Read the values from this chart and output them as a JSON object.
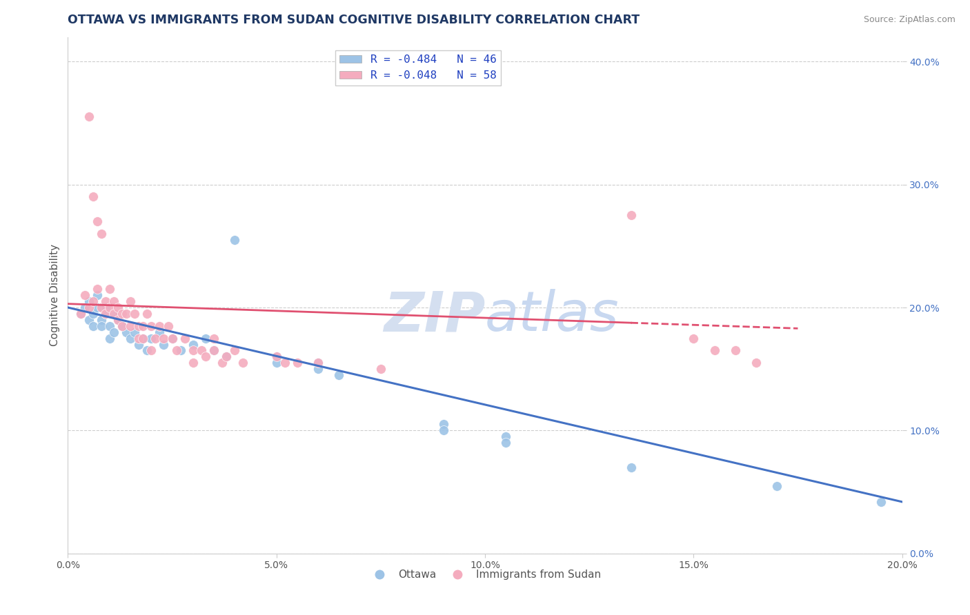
{
  "title": "OTTAWA VS IMMIGRANTS FROM SUDAN COGNITIVE DISABILITY CORRELATION CHART",
  "source": "Source: ZipAtlas.com",
  "ylabel": "Cognitive Disability",
  "watermark": "ZIPatlas",
  "legend_entry_1": "R = -0.484   N = 46",
  "legend_entry_2": "R = -0.048   N = 58",
  "legend_name_1": "Ottawa",
  "legend_name_2": "Immigrants from Sudan",
  "xlim": [
    0.0,
    0.2
  ],
  "ylim": [
    0.0,
    0.42
  ],
  "xticks": [
    0.0,
    0.05,
    0.1,
    0.15,
    0.2
  ],
  "yticks_right": [
    0.0,
    0.1,
    0.2,
    0.3,
    0.4
  ],
  "ottawa_scatter": [
    [
      0.003,
      0.195
    ],
    [
      0.004,
      0.2
    ],
    [
      0.005,
      0.19
    ],
    [
      0.005,
      0.205
    ],
    [
      0.006,
      0.185
    ],
    [
      0.006,
      0.195
    ],
    [
      0.007,
      0.2
    ],
    [
      0.007,
      0.21
    ],
    [
      0.008,
      0.19
    ],
    [
      0.008,
      0.185
    ],
    [
      0.009,
      0.2
    ],
    [
      0.009,
      0.195
    ],
    [
      0.01,
      0.185
    ],
    [
      0.01,
      0.175
    ],
    [
      0.011,
      0.195
    ],
    [
      0.011,
      0.18
    ],
    [
      0.012,
      0.19
    ],
    [
      0.013,
      0.185
    ],
    [
      0.014,
      0.18
    ],
    [
      0.015,
      0.175
    ],
    [
      0.016,
      0.18
    ],
    [
      0.017,
      0.17
    ],
    [
      0.018,
      0.175
    ],
    [
      0.019,
      0.165
    ],
    [
      0.02,
      0.175
    ],
    [
      0.022,
      0.18
    ],
    [
      0.023,
      0.17
    ],
    [
      0.025,
      0.175
    ],
    [
      0.027,
      0.165
    ],
    [
      0.03,
      0.17
    ],
    [
      0.033,
      0.175
    ],
    [
      0.035,
      0.165
    ],
    [
      0.038,
      0.16
    ],
    [
      0.04,
      0.255
    ],
    [
      0.05,
      0.16
    ],
    [
      0.05,
      0.155
    ],
    [
      0.06,
      0.155
    ],
    [
      0.06,
      0.15
    ],
    [
      0.065,
      0.145
    ],
    [
      0.09,
      0.105
    ],
    [
      0.09,
      0.1
    ],
    [
      0.105,
      0.095
    ],
    [
      0.105,
      0.09
    ],
    [
      0.135,
      0.07
    ],
    [
      0.17,
      0.055
    ],
    [
      0.195,
      0.042
    ]
  ],
  "sudan_scatter": [
    [
      0.003,
      0.195
    ],
    [
      0.004,
      0.21
    ],
    [
      0.005,
      0.2
    ],
    [
      0.005,
      0.355
    ],
    [
      0.006,
      0.205
    ],
    [
      0.006,
      0.29
    ],
    [
      0.007,
      0.215
    ],
    [
      0.007,
      0.27
    ],
    [
      0.008,
      0.2
    ],
    [
      0.008,
      0.26
    ],
    [
      0.009,
      0.195
    ],
    [
      0.009,
      0.205
    ],
    [
      0.01,
      0.2
    ],
    [
      0.01,
      0.215
    ],
    [
      0.011,
      0.195
    ],
    [
      0.011,
      0.205
    ],
    [
      0.012,
      0.2
    ],
    [
      0.012,
      0.19
    ],
    [
      0.013,
      0.195
    ],
    [
      0.013,
      0.185
    ],
    [
      0.014,
      0.195
    ],
    [
      0.015,
      0.205
    ],
    [
      0.015,
      0.185
    ],
    [
      0.016,
      0.195
    ],
    [
      0.017,
      0.185
    ],
    [
      0.017,
      0.175
    ],
    [
      0.018,
      0.185
    ],
    [
      0.018,
      0.175
    ],
    [
      0.019,
      0.195
    ],
    [
      0.02,
      0.185
    ],
    [
      0.02,
      0.165
    ],
    [
      0.021,
      0.175
    ],
    [
      0.022,
      0.185
    ],
    [
      0.023,
      0.175
    ],
    [
      0.024,
      0.185
    ],
    [
      0.025,
      0.175
    ],
    [
      0.026,
      0.165
    ],
    [
      0.028,
      0.175
    ],
    [
      0.03,
      0.165
    ],
    [
      0.03,
      0.155
    ],
    [
      0.032,
      0.165
    ],
    [
      0.033,
      0.16
    ],
    [
      0.035,
      0.175
    ],
    [
      0.035,
      0.165
    ],
    [
      0.037,
      0.155
    ],
    [
      0.038,
      0.16
    ],
    [
      0.04,
      0.165
    ],
    [
      0.042,
      0.155
    ],
    [
      0.05,
      0.16
    ],
    [
      0.052,
      0.155
    ],
    [
      0.055,
      0.155
    ],
    [
      0.06,
      0.155
    ],
    [
      0.075,
      0.15
    ],
    [
      0.135,
      0.275
    ],
    [
      0.15,
      0.175
    ],
    [
      0.155,
      0.165
    ],
    [
      0.16,
      0.165
    ],
    [
      0.165,
      0.155
    ]
  ],
  "ottawa_line": [
    [
      0.0,
      0.2
    ],
    [
      0.2,
      0.042
    ]
  ],
  "sudan_line": [
    [
      0.0,
      0.203
    ],
    [
      0.175,
      0.183
    ]
  ],
  "ottawa_color": "#4472c4",
  "sudan_color": "#e05070",
  "ottawa_scatter_color": "#9dc3e6",
  "sudan_scatter_color": "#f4acbe",
  "title_color": "#1f3864",
  "source_color": "#888888",
  "legend_text_color": "#2040c0",
  "axis_label_color": "#555555",
  "right_tick_color": "#4472c4",
  "grid_color": "#c8c8c8",
  "background_color": "#ffffff",
  "watermark_color": "#d4dff0",
  "title_fontsize": 12.5,
  "axis_label_fontsize": 11,
  "tick_fontsize": 10,
  "source_fontsize": 9,
  "scatter_size": 100
}
